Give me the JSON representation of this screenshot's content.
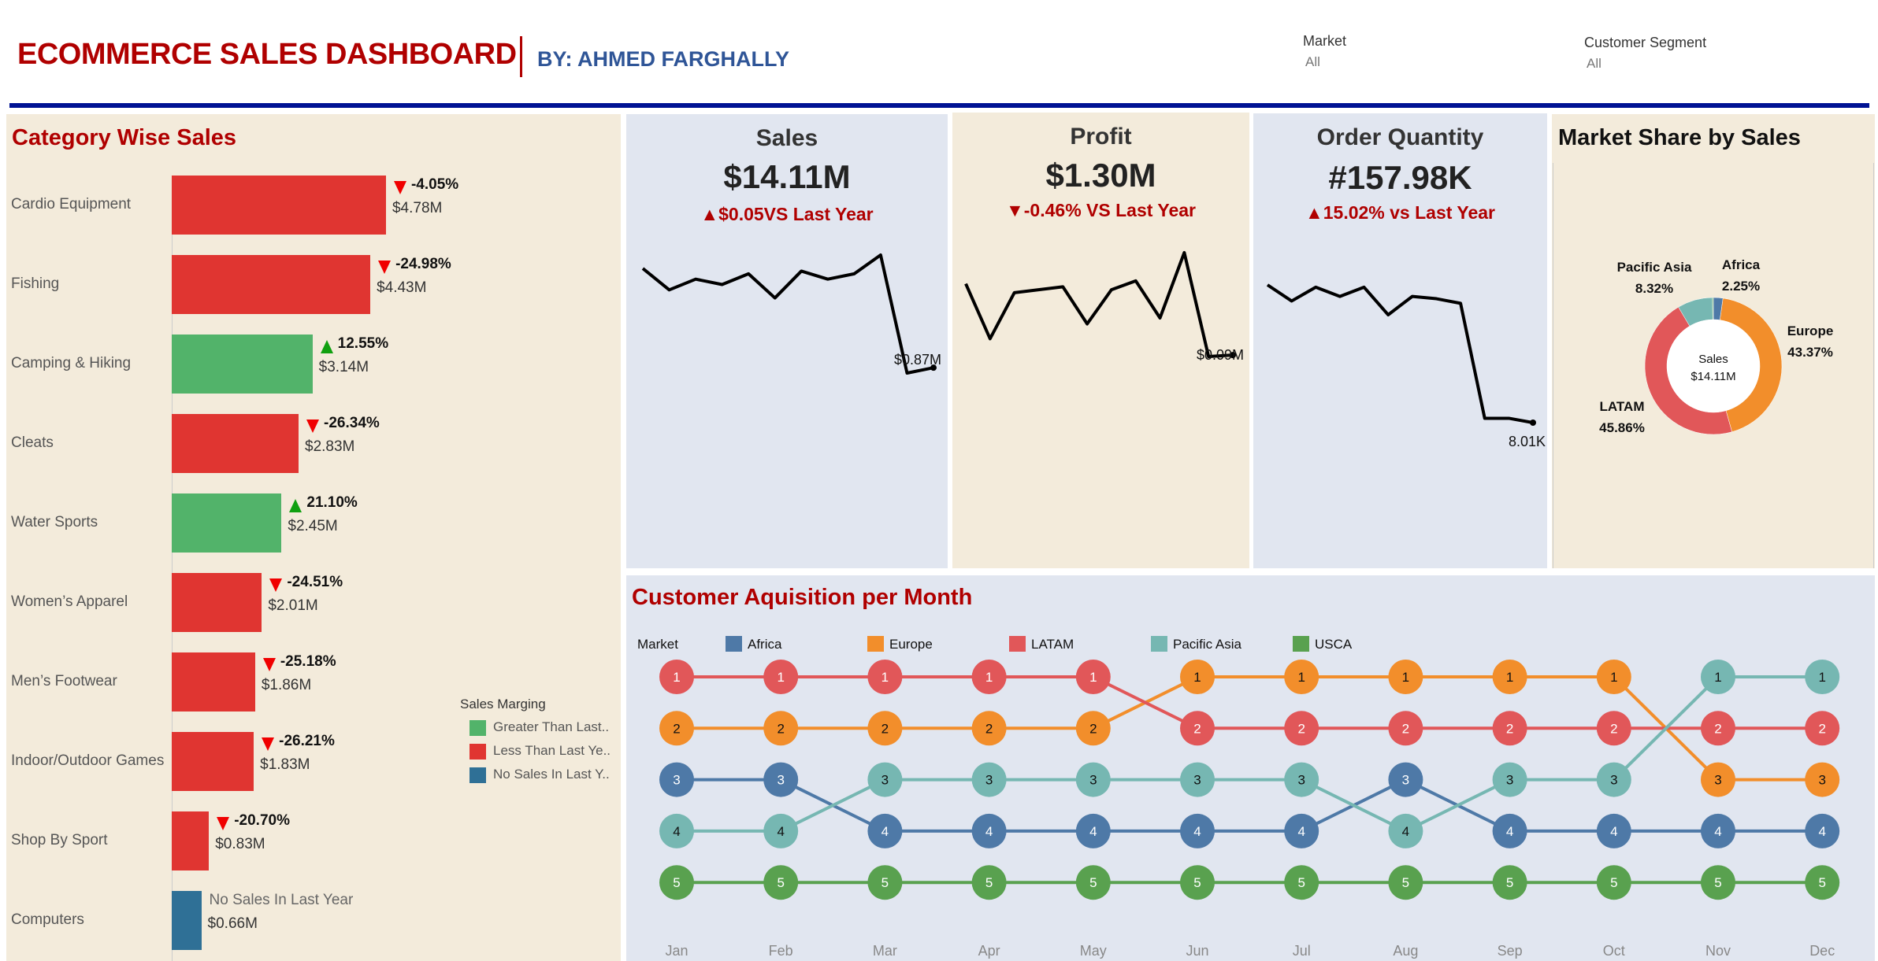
{
  "header": {
    "title": "ECOMMERCE SALES DASHBOARD",
    "byline": "BY: AHMED FARGHALLY",
    "filters": [
      {
        "label": "Market",
        "value": "All"
      },
      {
        "label": "Customer Segment",
        "value": "All"
      }
    ],
    "rule_color": "#001394"
  },
  "category_sales": {
    "title": "Category Wise Sales",
    "colors": {
      "greater": "#52b36a",
      "less": "#e03531",
      "none": "#2f7096",
      "up_arrow": "#10a010",
      "down_arrow": "#f00000"
    },
    "items": [
      {
        "name": "Cardio Equipment",
        "sales": 4.78,
        "sales_label": "$4.78M",
        "change": "-4.05%",
        "status": "less"
      },
      {
        "name": "Fishing",
        "sales": 4.43,
        "sales_label": "$4.43M",
        "change": "-24.98%",
        "status": "less"
      },
      {
        "name": "Camping & Hiking",
        "sales": 3.14,
        "sales_label": "$3.14M",
        "change": "12.55%",
        "status": "greater"
      },
      {
        "name": "Cleats",
        "sales": 2.83,
        "sales_label": "$2.83M",
        "change": "-26.34%",
        "status": "less"
      },
      {
        "name": "Water Sports",
        "sales": 2.45,
        "sales_label": "$2.45M",
        "change": "21.10%",
        "status": "greater"
      },
      {
        "name": "Women’s Apparel",
        "sales": 2.01,
        "sales_label": "$2.01M",
        "change": "-24.51%",
        "status": "less"
      },
      {
        "name": "Men’s Footwear",
        "sales": 1.86,
        "sales_label": "$1.86M",
        "change": "-25.18%",
        "status": "less"
      },
      {
        "name": "Indoor/Outdoor Games",
        "sales": 1.83,
        "sales_label": "$1.83M",
        "change": "-26.21%",
        "status": "less"
      },
      {
        "name": "Shop By Sport",
        "sales": 0.83,
        "sales_label": "$0.83M",
        "change": "-20.70%",
        "status": "less"
      },
      {
        "name": "Computers",
        "sales": 0.66,
        "sales_label": "$0.66M",
        "change": "No Sales In Last Year",
        "status": "none"
      }
    ],
    "legend": {
      "title": "Sales Marging",
      "items": [
        {
          "label": "Greater Than Last..",
          "status": "greater"
        },
        {
          "label": "Less Than Last Ye..",
          "status": "less"
        },
        {
          "label": "No Sales In Last Y..",
          "status": "none"
        }
      ]
    }
  },
  "kpis": {
    "sales": {
      "title": "Sales",
      "value": "$14.11M",
      "delta": "▲$0.05VS Last Year",
      "last_label": "$0.87M",
      "trend": [
        1.24,
        1.16,
        1.2,
        1.18,
        1.22,
        1.13,
        1.23,
        1.2,
        1.22,
        1.29,
        0.85,
        0.87
      ]
    },
    "profit": {
      "title": "Profit",
      "value": "$1.30M",
      "delta": "▼-0.46% VS Last Year",
      "last_label": "$0.09M",
      "trend": [
        0.139,
        0.102,
        0.133,
        0.135,
        0.137,
        0.112,
        0.135,
        0.141,
        0.116,
        0.16,
        0.09,
        0.091
      ]
    },
    "orders": {
      "title": "Order Quantity",
      "value": "#157.98K",
      "delta": "▲15.02% vs Last Year",
      "last_label": "8.01K",
      "trend": [
        14.0,
        13.3,
        13.9,
        13.5,
        13.9,
        12.7,
        13.5,
        13.4,
        13.2,
        8.2,
        8.2,
        8.01
      ]
    }
  },
  "market_share": {
    "title": "Market Share by Sales",
    "center_label": "Sales",
    "center_value": "$14.11M",
    "slices": [
      {
        "name": "Africa",
        "pct": 2.25,
        "pct_label": "2.25%",
        "color": "#4e79a7"
      },
      {
        "name": "Europe",
        "pct": 43.37,
        "pct_label": "43.37%",
        "color": "#f28e2b"
      },
      {
        "name": "LATAM",
        "pct": 45.86,
        "pct_label": "45.86%",
        "color": "#e15759"
      },
      {
        "name": "Pacific Asia",
        "pct": 8.32,
        "pct_label": "8.32%",
        "color": "#76b7b2"
      },
      {
        "name": "USCA",
        "pct": 0.2,
        "color": "#59a14f"
      }
    ]
  },
  "acquisition": {
    "title": "Customer Aquisition per Month",
    "legend_title": "Market",
    "months": [
      "Jan",
      "Feb",
      "Mar",
      "Apr",
      "May",
      "Jun",
      "Jul",
      "Aug",
      "Sep",
      "Oct",
      "Nov",
      "Dec"
    ],
    "series": [
      {
        "name": "Africa",
        "color": "#4e79a7",
        "ranks": [
          3,
          3,
          4,
          4,
          4,
          4,
          4,
          3,
          4,
          4,
          4,
          4
        ]
      },
      {
        "name": "Europe",
        "color": "#f28e2b",
        "ranks": [
          2,
          2,
          2,
          2,
          2,
          1,
          1,
          1,
          1,
          1,
          3,
          3
        ]
      },
      {
        "name": "LATAM",
        "color": "#e15759",
        "ranks": [
          1,
          1,
          1,
          1,
          1,
          2,
          2,
          2,
          2,
          2,
          2,
          2
        ]
      },
      {
        "name": "Pacific Asia",
        "color": "#76b7b2",
        "ranks": [
          4,
          4,
          3,
          3,
          3,
          3,
          3,
          4,
          3,
          3,
          1,
          1
        ]
      },
      {
        "name": "USCA",
        "color": "#59a14f",
        "ranks": [
          5,
          5,
          5,
          5,
          5,
          5,
          5,
          5,
          5,
          5,
          5,
          5
        ]
      }
    ]
  }
}
